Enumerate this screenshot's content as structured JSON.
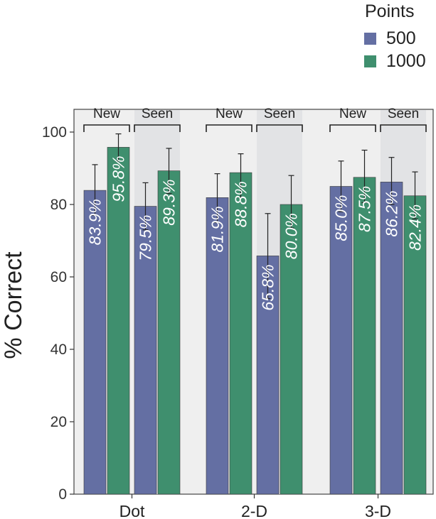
{
  "legend": {
    "title": "Points",
    "items": [
      {
        "label": "500",
        "color": "#646fa3"
      },
      {
        "label": "1000",
        "color": "#3f8f6e"
      }
    ]
  },
  "chart_data": {
    "type": "bar",
    "title": "",
    "xlabel": "",
    "ylabel": "% Correct",
    "ylim": [
      0,
      110
    ],
    "yticks": [
      0,
      20,
      40,
      60,
      80,
      100
    ],
    "grid": false,
    "legend_position": "top-right",
    "categories": [
      "Dot",
      "2-D",
      "3-D"
    ],
    "subgroups": [
      "New",
      "Seen"
    ],
    "series": [
      {
        "name": "500",
        "color": "#646fa3",
        "values": [
          [
            83.9,
            79.5
          ],
          [
            81.9,
            65.8
          ],
          [
            85.0,
            86.2
          ]
        ],
        "error": [
          [
            [
              77.0,
              91.0
            ],
            [
              73.0,
              86.0
            ]
          ],
          [
            [
              75.0,
              88.5
            ],
            [
              54.0,
              77.5
            ]
          ],
          [
            [
              78.0,
              92.0
            ],
            [
              80.0,
              93.0
            ]
          ]
        ],
        "labels": [
          [
            "83.9%",
            "79.5%"
          ],
          [
            "81.9%",
            "65.8%"
          ],
          [
            "85.0%",
            "86.2%"
          ]
        ]
      },
      {
        "name": "1000",
        "color": "#3f8f6e",
        "values": [
          [
            95.8,
            89.3
          ],
          [
            88.8,
            80.0
          ],
          [
            87.5,
            82.4
          ]
        ],
        "error": [
          [
            [
              92.0,
              99.5
            ],
            [
              83.0,
              95.5
            ]
          ],
          [
            [
              82.0,
              94.0
            ],
            [
              73.5,
              88.0
            ]
          ],
          [
            [
              80.5,
              95.0
            ],
            [
              76.0,
              89.0
            ]
          ]
        ],
        "labels": [
          [
            "95.8%",
            "89.3%"
          ],
          [
            "88.8%",
            "80.0%"
          ],
          [
            "87.5%",
            "82.4%"
          ]
        ]
      }
    ],
    "colors": {
      "panel": "#efefef",
      "seen_shade": "#e2e3e5"
    }
  }
}
